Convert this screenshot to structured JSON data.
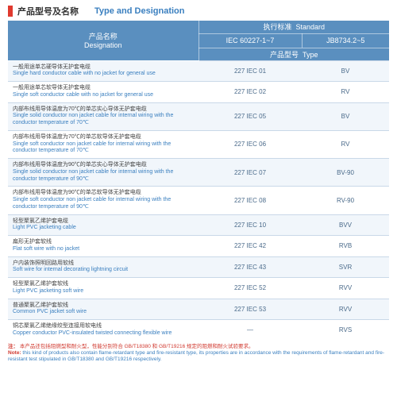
{
  "colors": {
    "accent_red": "#e03a2f",
    "title_cn": "#333333",
    "title_en": "#3a7fbf",
    "header_bg": "#5a8fbf",
    "row_alt_bg": "#f1f6fb",
    "row_plain_bg": "#ffffff",
    "border": "#c9d8e8",
    "note_red": "#d0382e",
    "body_text": "#555555"
  },
  "header": {
    "title_cn": "产品型号及名称",
    "title_en": "Type and Designation"
  },
  "thead": {
    "designation_cn": "产品名称",
    "designation_en": "Designation",
    "standard_cn": "执行标准",
    "standard_en": "Standard",
    "iec": "IEC 60227-1~7",
    "jb": "JB8734.2~5",
    "type_cn": "产品型号",
    "type_en": "Type"
  },
  "rows": [
    {
      "cn": "一般用途单芯硬导体无护套电缆",
      "en": "Single hard conductor cable with no jacket for general use",
      "iec": "227  IEC 01",
      "jb": "BV"
    },
    {
      "cn": "一般用途单芯软导体无护套电缆",
      "en": "Single soft conductor cable with no jacket for general use",
      "iec": "227  IEC 02",
      "jb": "RV"
    },
    {
      "cn": "内部布线用导体温度为70℃的单芯实心导体无护套电缆",
      "en": "Single solid conductor non jacket cable for internal wiring with the conductor temperature of 70℃",
      "iec": "227  IEC 05",
      "jb": "BV"
    },
    {
      "cn": "内部布线用导体温度为70℃的单芯软导体无护套电缆",
      "en": "Single soft conductor non jacket cable for internal wiring with the conductor temperature of 70℃",
      "iec": "227  IEC 06",
      "jb": "RV"
    },
    {
      "cn": "内部布线用导体温度为90℃的单芯实心导体无护套电缆",
      "en": "Single solid conductor non jacket cable for internal wiring with the conductor temperature of 90℃",
      "iec": "227  IEC 07",
      "jb": "BV-90"
    },
    {
      "cn": "内部布线用导体温度为90℃的单芯软导体无护套电缆",
      "en": "Single soft conductor non jacket cable for internal wiring with the conductor temperature of 90℃",
      "iec": "227  IEC 08",
      "jb": "RV-90"
    },
    {
      "cn": "轻型聚氯乙烯护套电缆",
      "en": "Light PVC jacketing cable",
      "iec": "227  IEC 10",
      "jb": "BVV"
    },
    {
      "cn": "扁形无护套软线",
      "en": "Flat soft wire with no jacket",
      "iec": "227  IEC 42",
      "jb": "RVB"
    },
    {
      "cn": "户内装饰照明回路用软线",
      "en": "Soft wire for internal decorating lightning circuit",
      "iec": "227  IEC 43",
      "jb": "SVR"
    },
    {
      "cn": "轻型聚氯乙烯护套软线",
      "en": "Light PVC jacketing soft wire",
      "iec": "227  IEC 52",
      "jb": "RVV"
    },
    {
      "cn": "普通聚氯乙烯护套软线",
      "en": "Common PVC jacket soft wire",
      "iec": "227  IEC 53",
      "jb": "RVV"
    },
    {
      "cn": "铜芯聚氯乙烯绝缘绞型连接用软电线",
      "en": "Copper conductor PVC-insulated twisted connecting flexible wire",
      "iec": "—",
      "jb": "RVS"
    }
  ],
  "footer": {
    "note_label_cn": "注：",
    "note_cn": "本产品还包括阻燃型和耐火型，性能分别符合 GB/T18380 和 GB/T19216 规定的阻燃和耐火试验要求。",
    "note_label_en": "Note:",
    "note_en": "this kind of products also contain flame-retardant type and fire-resistant type, its properties are in accordance with the requirements of flame-retardant and fire-resistant test stipulated in GB/T18380 and GB/T19216 respectively."
  }
}
